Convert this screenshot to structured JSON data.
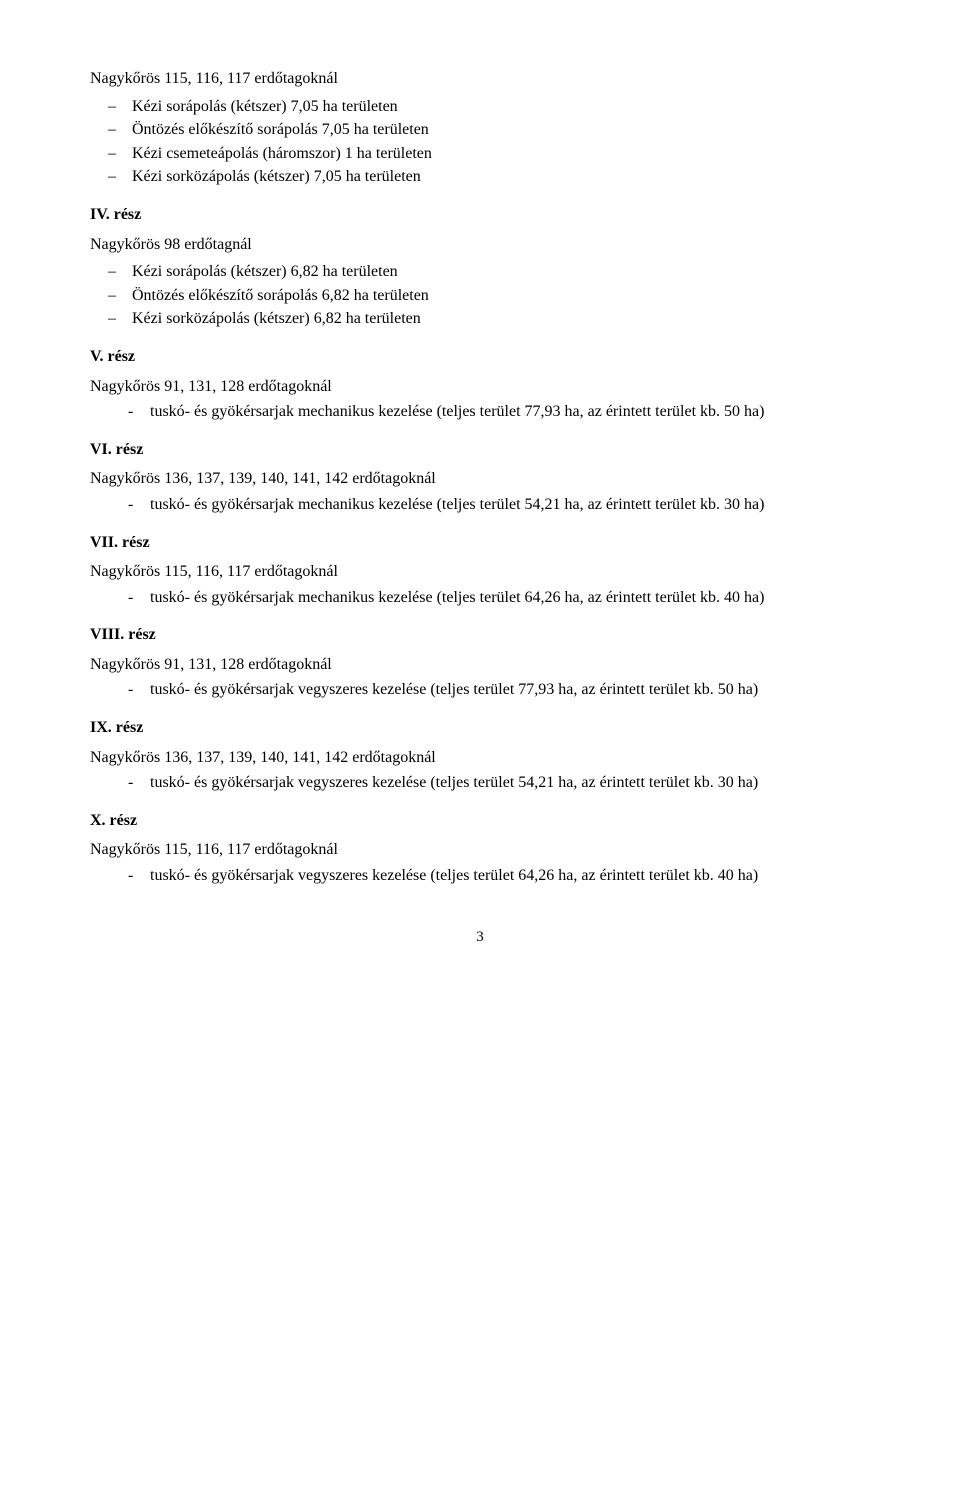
{
  "loc1_title": "Nagykőrös 115, 116, 117 erdőtagoknál",
  "loc1_items": {
    "a": "Kézi sorápolás (kétszer) 7,05 ha területen",
    "b": "Öntözés előkészítő sorápolás 7,05 ha területen",
    "c": "Kézi csemeteápolás (háromszor) 1 ha területen",
    "d": "Kézi sorközápolás (kétszer) 7,05 ha területen"
  },
  "part4": "IV. rész",
  "loc2_title": "Nagykőrös 98 erdőtagnál",
  "loc2_items": {
    "a": "Kézi sorápolás (kétszer) 6,82 ha területen",
    "b": "Öntözés előkészítő sorápolás 6,82 ha területen",
    "c": "Kézi sorközápolás (kétszer) 6,82 ha területen"
  },
  "part5": "V. rész",
  "loc3_title": "Nagykőrös 91, 131, 128 erdőtagoknál",
  "loc3_item": "tuskó- és gyökérsarjak mechanikus kezelése (teljes terület 77,93 ha, az érintett terület kb. 50 ha)",
  "part6": "VI. rész",
  "loc4_title": "Nagykőrös 136, 137, 139, 140, 141, 142 erdőtagoknál",
  "loc4_item": "tuskó- és gyökérsarjak mechanikus kezelése (teljes terület 54,21 ha, az érintett terület kb. 30 ha)",
  "part7": "VII. rész",
  "loc5_title": "Nagykőrös 115, 116, 117 erdőtagoknál",
  "loc5_item": "tuskó- és gyökérsarjak mechanikus kezelése (teljes terület 64,26 ha, az érintett terület kb. 40 ha)",
  "part8": "VIII. rész",
  "loc6_title": "Nagykőrös 91, 131, 128 erdőtagoknál",
  "loc6_item": "tuskó- és gyökérsarjak vegyszeres kezelése (teljes terület 77,93 ha, az érintett terület kb. 50 ha)",
  "part9": "IX. rész",
  "loc7_title": "Nagykőrös 136, 137, 139, 140, 141, 142 erdőtagoknál",
  "loc7_item": "tuskó- és gyökérsarjak vegyszeres kezelése (teljes terület 54,21 ha, az érintett terület kb. 30 ha)",
  "part10": "X. rész",
  "loc8_title": "Nagykőrös 115, 116, 117 erdőtagoknál",
  "loc8_item": "tuskó- és gyökérsarjak vegyszeres kezelése (teljes terület 64,26 ha, az érintett terület kb. 40 ha)",
  "page_number": "3"
}
